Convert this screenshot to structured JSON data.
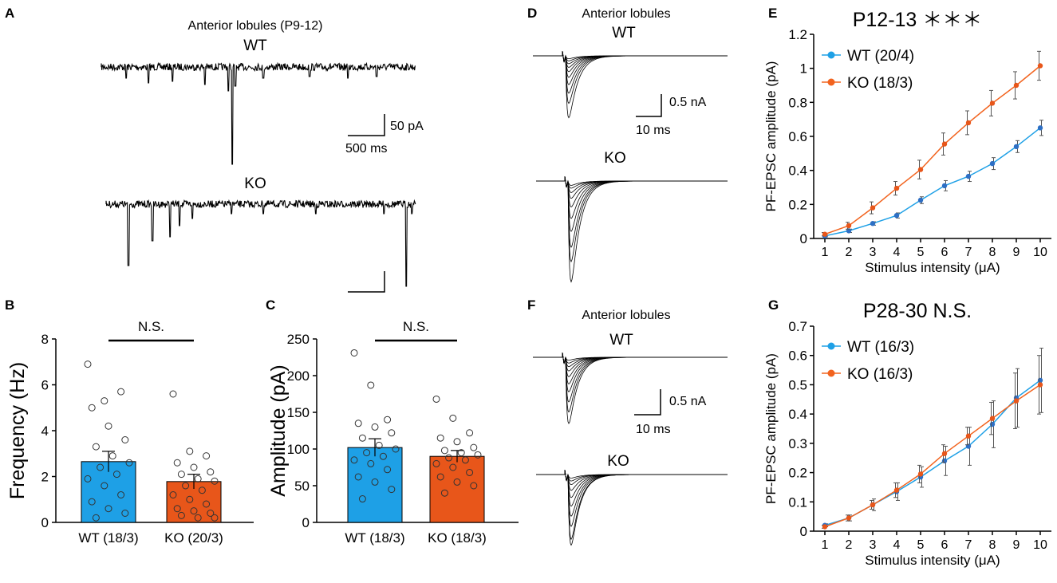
{
  "panels": {
    "A": {
      "letter": "A",
      "title": "Anterior lobules (P9-12)",
      "wt_label": "WT",
      "ko_label": "KO",
      "scale_y": "50 pA",
      "scale_x": "500 ms"
    },
    "B": {
      "letter": "B"
    },
    "C": {
      "letter": "C"
    },
    "D": {
      "letter": "D",
      "title": "Anterior lobules",
      "wt_label": "WT",
      "ko_label": "KO",
      "scale_y": "0.5 nA",
      "scale_x": "10 ms"
    },
    "E": {
      "letter": "E"
    },
    "F": {
      "letter": "F",
      "title": "Anterior lobules",
      "wt_label": "WT",
      "ko_label": "KO",
      "scale_y": "0.5 nA",
      "scale_x": "10 ms"
    },
    "G": {
      "letter": "G"
    }
  },
  "colors": {
    "wt_bar": "#1ea0e6",
    "ko_bar": "#e8561a",
    "wt_line": "#1ea0e6",
    "ko_line": "#f2631e",
    "wt_point": "#2e6fc4",
    "ko_point": "#e8561a"
  },
  "chart_data": [
    {
      "id": "B",
      "type": "bar",
      "ylabel": "Frequency (Hz)",
      "ylim": [
        0,
        8
      ],
      "yticks": [
        "0",
        "2",
        "4",
        "6",
        "8"
      ],
      "categories": [
        "WT (18/3)",
        "KO (20/3)"
      ],
      "values": [
        2.65,
        1.78
      ],
      "sem": [
        0.45,
        0.32
      ],
      "significance": "N.S.",
      "points": [
        [
          6.9,
          5.3,
          5.7,
          5.0,
          4.2,
          3.6,
          3.3,
          2.9,
          2.6,
          2.4,
          2.1,
          1.9,
          1.6,
          1.2,
          0.9,
          0.6,
          0.4,
          0.2
        ],
        [
          5.6,
          3.1,
          2.9,
          2.6,
          2.4,
          2.2,
          2.1,
          1.9,
          1.8,
          1.6,
          1.4,
          1.2,
          1.0,
          0.8,
          0.6,
          0.5,
          0.4,
          0.3,
          0.2,
          0.2
        ]
      ]
    },
    {
      "id": "C",
      "type": "bar",
      "ylabel": "Amplitude (pA)",
      "ylim": [
        0,
        250
      ],
      "yticks": [
        "0",
        "50",
        "100",
        "150",
        "200",
        "250"
      ],
      "categories": [
        "WT (18/3)",
        "KO (18/3)"
      ],
      "values": [
        102,
        90
      ],
      "sem": [
        12,
        8
      ],
      "significance": "N.S.",
      "points": [
        [
          231,
          187,
          140,
          135,
          130,
          122,
          115,
          105,
          100,
          95,
          90,
          85,
          80,
          72,
          62,
          55,
          45,
          32
        ],
        [
          168,
          142,
          122,
          115,
          110,
          102,
          98,
          95,
          92,
          88,
          85,
          80,
          75,
          68,
          62,
          55,
          50,
          40
        ]
      ]
    },
    {
      "id": "E",
      "type": "line",
      "title": "P12-13 ＊＊＊",
      "xlabel": "Stimulus intensity (μA)",
      "ylabel": "PF-EPSC amplitude (pA)",
      "x": [
        1,
        2,
        3,
        4,
        5,
        6,
        7,
        8,
        9,
        10
      ],
      "ylim": [
        0,
        1.2
      ],
      "yticks": [
        "0",
        "0.2",
        "0.4",
        "0.6",
        "0.8",
        "1",
        "1.2"
      ],
      "series": [
        {
          "name": "WT (20/4)",
          "values": [
            0.015,
            0.045,
            0.088,
            0.135,
            0.225,
            0.31,
            0.365,
            0.44,
            0.54,
            0.65
          ],
          "err": [
            0.005,
            0.01,
            0.01,
            0.015,
            0.02,
            0.03,
            0.03,
            0.035,
            0.035,
            0.045
          ]
        },
        {
          "name": "KO (18/3)",
          "values": [
            0.025,
            0.075,
            0.18,
            0.295,
            0.405,
            0.555,
            0.68,
            0.795,
            0.9,
            1.015
          ],
          "err": [
            0.01,
            0.02,
            0.035,
            0.04,
            0.055,
            0.065,
            0.07,
            0.075,
            0.08,
            0.085
          ]
        }
      ]
    },
    {
      "id": "G",
      "type": "line",
      "title": "P28-30 N.S.",
      "xlabel": "Stimulus intensity (μA)",
      "ylabel": "PF-EPSC amplitude (pA)",
      "x": [
        1,
        2,
        3,
        4,
        5,
        6,
        7,
        8,
        9,
        10
      ],
      "ylim": [
        0,
        0.7
      ],
      "yticks": [
        "0",
        "0.1",
        "0.2",
        "0.3",
        "0.4",
        "0.5",
        "0.6",
        "0.7"
      ],
      "series": [
        {
          "name": "WT (16/3)",
          "values": [
            0.02,
            0.045,
            0.09,
            0.135,
            0.185,
            0.24,
            0.29,
            0.365,
            0.455,
            0.515
          ],
          "err": [
            0.005,
            0.01,
            0.02,
            0.03,
            0.035,
            0.05,
            0.065,
            0.08,
            0.1,
            0.11
          ]
        },
        {
          "name": "KO (16/3)",
          "values": [
            0.015,
            0.045,
            0.09,
            0.14,
            0.195,
            0.265,
            0.325,
            0.385,
            0.445,
            0.5
          ],
          "err": [
            0.005,
            0.01,
            0.015,
            0.025,
            0.03,
            0.03,
            0.03,
            0.055,
            0.095,
            0.1
          ]
        }
      ]
    }
  ]
}
